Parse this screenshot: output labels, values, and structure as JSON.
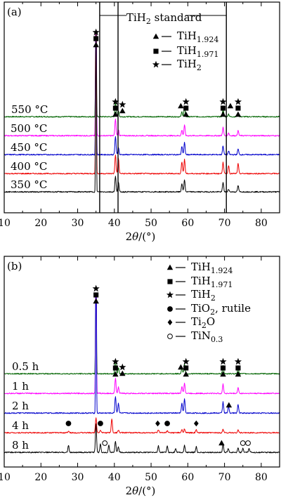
{
  "chart_data": [
    {
      "panel_label": "(a)",
      "type": "line",
      "x_ticks": [
        10,
        20,
        30,
        40,
        50,
        60,
        70,
        80
      ],
      "x_label_prefix": "2",
      "x_label_theta": "θ",
      "x_label_suffix": "/(°)",
      "xlim": [
        10,
        85
      ],
      "grid": false,
      "legend_placement": "top-right",
      "annotation": {
        "text": "TiH",
        "sub": "2",
        "suffix": "  standard",
        "x_lines": [
          36,
          41,
          70.5
        ]
      },
      "legend": [
        {
          "symbol": "triangle",
          "text": "TiH",
          "sub": "1.924"
        },
        {
          "symbol": "square",
          "text": "TiH",
          "sub": "1.971"
        },
        {
          "symbol": "star",
          "text": "TiH",
          "sub": "2"
        }
      ],
      "series": [
        {
          "name": "550 °C",
          "color": "#006400",
          "peaks": [
            [
              35,
              255
            ],
            [
              40.3,
              22
            ],
            [
              41.1,
              9
            ],
            [
              58.4,
              7
            ],
            [
              59.1,
              14
            ],
            [
              69.6,
              12
            ],
            [
              71.1,
              4
            ],
            [
              73.7,
              6
            ]
          ]
        },
        {
          "name": "500 °C",
          "color": "#ff00ff",
          "peaks": [
            [
              35,
              255
            ],
            [
              40.3,
              24
            ],
            [
              41.1,
              9
            ],
            [
              58.4,
              8
            ],
            [
              59.1,
              15
            ],
            [
              69.6,
              12
            ],
            [
              71.1,
              4
            ],
            [
              73.7,
              7
            ]
          ]
        },
        {
          "name": "450 °C",
          "color": "#0000cc",
          "peaks": [
            [
              35,
              255
            ],
            [
              40.3,
              26
            ],
            [
              41.1,
              11
            ],
            [
              58.4,
              12
            ],
            [
              59.1,
              17
            ],
            [
              69.6,
              13
            ],
            [
              71.1,
              5
            ],
            [
              73.7,
              8
            ]
          ]
        },
        {
          "name": "400 °C",
          "color": "#ee0000",
          "peaks": [
            [
              35,
              255
            ],
            [
              40.3,
              27
            ],
            [
              41.1,
              22
            ],
            [
              58.4,
              17
            ],
            [
              59.1,
              20
            ],
            [
              69.6,
              17
            ],
            [
              71.1,
              12
            ],
            [
              73.7,
              14
            ]
          ]
        },
        {
          "name": "350 °C",
          "color": "#000000",
          "peaks": [
            [
              35,
              255
            ],
            [
              40.3,
              22
            ],
            [
              41.1,
              14
            ],
            [
              58.4,
              12
            ],
            [
              59.1,
              17
            ],
            [
              69.6,
              14
            ],
            [
              71.1,
              4
            ],
            [
              73.7,
              9
            ]
          ]
        }
      ],
      "phase_markers": [
        {
          "x": 35,
          "symbols": [
            "star",
            "square",
            "triangle"
          ]
        },
        {
          "x": 40.3,
          "symbols": [
            "star",
            "square",
            "triangle"
          ]
        },
        {
          "x": 42.2,
          "symbols": [
            "star",
            "triangle"
          ]
        },
        {
          "x": 58.1,
          "symbols": [
            "triangle"
          ]
        },
        {
          "x": 59.5,
          "symbols": [
            "star",
            "square",
            "triangle"
          ]
        },
        {
          "x": 69.6,
          "symbols": [
            "star",
            "square",
            "triangle"
          ]
        },
        {
          "x": 71.6,
          "symbols": [
            "triangle"
          ]
        },
        {
          "x": 73.7,
          "symbols": [
            "star",
            "square",
            "triangle"
          ]
        }
      ]
    },
    {
      "panel_label": "(b)",
      "type": "line",
      "x_ticks": [
        10,
        20,
        30,
        40,
        50,
        60,
        70,
        80
      ],
      "x_label_prefix": "2",
      "x_label_theta": "θ",
      "x_label_suffix": "/(°)",
      "xlim": [
        10,
        85
      ],
      "grid": false,
      "legend_placement": "top-right",
      "legend": [
        {
          "symbol": "triangle",
          "text": "TiH",
          "sub": "1.924"
        },
        {
          "symbol": "square",
          "text": "TiH",
          "sub": "1.971"
        },
        {
          "symbol": "star",
          "text": "TiH",
          "sub": "2"
        },
        {
          "symbol": "circle",
          "text": "TiO",
          "sub": "2",
          "suffix": ", rutile"
        },
        {
          "symbol": "diamond",
          "text": "Ti",
          "sub": "2",
          "suffix": "O"
        },
        {
          "symbol": "open-circle",
          "text": "TiN",
          "sub": "0.3"
        }
      ],
      "series": [
        {
          "name": "0.5 h",
          "color": "#006400",
          "peaks": [
            [
              35,
              255
            ],
            [
              40.3,
              20
            ],
            [
              41.1,
              8
            ],
            [
              58.4,
              8
            ],
            [
              59.1,
              14
            ],
            [
              69.6,
              12
            ],
            [
              73.7,
              8
            ]
          ]
        },
        {
          "name": "1 h",
          "color": "#ff00ff",
          "peaks": [
            [
              35,
              255
            ],
            [
              40.3,
              22
            ],
            [
              41.1,
              9
            ],
            [
              58.4,
              10
            ],
            [
              59.1,
              15
            ],
            [
              69.6,
              13
            ],
            [
              73.7,
              8
            ]
          ]
        },
        {
          "name": "2 h",
          "color": "#0000cc",
          "peaks": [
            [
              35,
              255
            ],
            [
              40.3,
              24
            ],
            [
              41.1,
              14
            ],
            [
              58.4,
              14
            ],
            [
              59.1,
              20
            ],
            [
              69.6,
              16
            ],
            [
              71.1,
              10
            ],
            [
              73.7,
              12
            ]
          ]
        },
        {
          "name": "4 h",
          "color": "#ee0000",
          "peaks": [
            [
              27.5,
              2
            ],
            [
              35,
              22
            ],
            [
              36.2,
              4
            ],
            [
              39.3,
              20
            ],
            [
              41.1,
              4
            ],
            [
              52,
              4
            ],
            [
              54.4,
              3
            ],
            [
              58.4,
              4
            ],
            [
              59.1,
              6
            ],
            [
              62.3,
              4
            ],
            [
              69.6,
              5
            ],
            [
              73.7,
              4
            ]
          ]
        },
        {
          "name": "8 h",
          "color": "#000000",
          "peaks": [
            [
              27.5,
              10
            ],
            [
              35,
              40
            ],
            [
              36.2,
              12
            ],
            [
              38.5,
              10
            ],
            [
              40.3,
              16
            ],
            [
              41.1,
              8
            ],
            [
              52,
              10
            ],
            [
              54.4,
              9
            ],
            [
              56.7,
              6
            ],
            [
              59.1,
              10
            ],
            [
              62.3,
              8
            ],
            [
              69.6,
              12
            ],
            [
              71,
              6
            ],
            [
              73.7,
              6
            ],
            [
              75,
              6
            ],
            [
              76.7,
              6
            ]
          ]
        }
      ],
      "phase_markers": [
        {
          "x": 35,
          "symbols": [
            "star",
            "square",
            "triangle"
          ]
        },
        {
          "x": 40.3,
          "symbols": [
            "star",
            "square",
            "triangle"
          ]
        },
        {
          "x": 42.2,
          "symbols": [
            "star",
            "triangle"
          ]
        },
        {
          "x": 58.1,
          "symbols": [
            "triangle"
          ]
        },
        {
          "x": 59.5,
          "symbols": [
            "star",
            "square",
            "triangle"
          ]
        },
        {
          "x": 69.6,
          "symbols": [
            "star",
            "square",
            "triangle"
          ]
        },
        {
          "x": 73.7,
          "symbols": [
            "star",
            "square",
            "triangle"
          ]
        },
        {
          "x": 71.2,
          "row": 2,
          "symbols": [
            "triangle"
          ]
        },
        {
          "x": 27.5,
          "row": 3,
          "symbols": [
            "circle"
          ]
        },
        {
          "x": 36.2,
          "row": 3,
          "symbols": [
            "circle"
          ]
        },
        {
          "x": 51.8,
          "row": 3,
          "symbols": [
            "diamond"
          ]
        },
        {
          "x": 54.4,
          "row": 3,
          "symbols": [
            "circle"
          ]
        },
        {
          "x": 62.3,
          "row": 3,
          "symbols": [
            "diamond"
          ]
        },
        {
          "x": 37.4,
          "row": 4,
          "symbols": [
            "open-circle"
          ]
        },
        {
          "x": 69.2,
          "row": 4,
          "symbols": [
            "triangle"
          ]
        },
        {
          "x": 75.0,
          "row": 4,
          "symbols": [
            "open-circle"
          ]
        },
        {
          "x": 76.4,
          "row": 4,
          "symbols": [
            "open-circle"
          ]
        }
      ]
    }
  ]
}
